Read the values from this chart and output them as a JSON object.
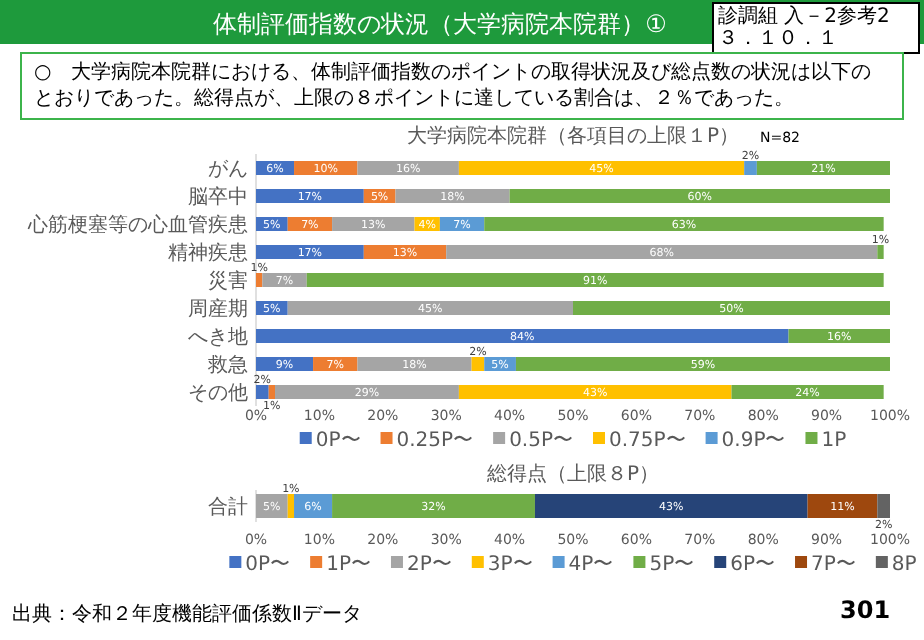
{
  "chart_data": [
    {
      "type": "bar",
      "orientation": "horizontal",
      "stacked": true,
      "title": "大学病院本院群（各項目の上限１P）",
      "annotations": [
        "体制評価指数の状況（大学病院本院群）①",
        "診調組 入－2参考2",
        "３．１０．１",
        "○　大学病院本院群における、体制評価指数のポイントの取得状況及び総点数の状況は以下のとおりであった。総得点が、上限の８ポイントに達している割合は、２％であった。",
        "N=82"
      ],
      "categories": [
        "がん",
        "脳卒中",
        "心筋梗塞等の心血管疾患",
        "精神疾患",
        "災害",
        "周産期",
        "へき地",
        "救急",
        "その他"
      ],
      "series": [
        {
          "name": "0P〜",
          "color": "#4472c4",
          "values": [
            6,
            17,
            5,
            17,
            null,
            5,
            84,
            9,
            2
          ],
          "value_labels": [
            "6%",
            "17%",
            "5%",
            "17%",
            null,
            "5%",
            "84%",
            "9%",
            "2%"
          ]
        },
        {
          "name": "0.25P〜",
          "color": "#ed7d31",
          "values": [
            10,
            5,
            7,
            13,
            1,
            null,
            null,
            7,
            1
          ],
          "value_labels": [
            "10%",
            "5%",
            "7%",
            "13%",
            "1%",
            null,
            null,
            "7%",
            "1%"
          ]
        },
        {
          "name": "0.5P〜",
          "color": "#a5a5a5",
          "values": [
            16,
            18,
            13,
            68,
            7,
            45,
            null,
            18,
            29
          ],
          "value_labels": [
            "16%",
            "18%",
            "13%",
            "68%",
            "7%",
            "45%",
            null,
            "18%",
            "29%"
          ]
        },
        {
          "name": "0.75P〜",
          "color": "#ffc000",
          "values": [
            45,
            null,
            4,
            null,
            null,
            null,
            null,
            2,
            43
          ],
          "value_labels": [
            "45%",
            null,
            "4%",
            null,
            null,
            null,
            null,
            "2%",
            "43%"
          ]
        },
        {
          "name": "0.9P〜",
          "color": "#5b9bd5",
          "values": [
            2,
            null,
            7,
            null,
            null,
            null,
            null,
            5,
            null
          ],
          "value_labels": [
            "2%",
            null,
            "7%",
            null,
            null,
            null,
            null,
            "5%",
            null
          ]
        },
        {
          "name": "1P",
          "color": "#70ad47",
          "values": [
            21,
            60,
            63,
            1,
            91,
            50,
            16,
            59,
            24
          ],
          "value_labels": [
            "21%",
            "60%",
            "63%",
            "1%",
            "91%",
            "50%",
            "16%",
            "59%",
            "24%"
          ]
        }
      ],
      "xlim": [
        0,
        100
      ],
      "xticks": [
        {
          "value": 0,
          "label": "0%"
        },
        {
          "value": 10,
          "label": "10%"
        },
        {
          "value": 20,
          "label": "20%"
        },
        {
          "value": 30,
          "label": "30%"
        },
        {
          "value": 40,
          "label": "40%"
        },
        {
          "value": 50,
          "label": "50%"
        },
        {
          "value": 60,
          "label": "60%"
        },
        {
          "value": 70,
          "label": "70%"
        },
        {
          "value": 80,
          "label": "80%"
        },
        {
          "value": 90,
          "label": "90%"
        },
        {
          "value": 100,
          "label": "100%"
        }
      ],
      "legend": "bottom"
    },
    {
      "type": "bar",
      "orientation": "horizontal",
      "stacked": true,
      "title": "総得点（上限８P）",
      "annotations": [
        "出典：令和２年度機能評価係数Ⅱデータ",
        "301"
      ],
      "categories": [
        "合計"
      ],
      "series": [
        {
          "name": "0P〜",
          "color": "#4472c4",
          "values": [
            null
          ],
          "value_labels": [
            null
          ]
        },
        {
          "name": "1P〜",
          "color": "#ed7d31",
          "values": [
            null
          ],
          "value_labels": [
            null
          ]
        },
        {
          "name": "2P〜",
          "color": "#a5a5a5",
          "values": [
            5
          ],
          "value_labels": [
            "5%"
          ]
        },
        {
          "name": "3P〜",
          "color": "#ffc000",
          "values": [
            1
          ],
          "value_labels": [
            "1%"
          ]
        },
        {
          "name": "4P〜",
          "color": "#5b9bd5",
          "values": [
            6
          ],
          "value_labels": [
            "6%"
          ]
        },
        {
          "name": "5P〜",
          "color": "#70ad47",
          "values": [
            32
          ],
          "value_labels": [
            "32%"
          ]
        },
        {
          "name": "6P〜",
          "color": "#264478",
          "values": [
            43
          ],
          "value_labels": [
            "43%"
          ]
        },
        {
          "name": "7P〜",
          "color": "#9e480e",
          "values": [
            11
          ],
          "value_labels": [
            "11%"
          ]
        },
        {
          "name": "8P",
          "color": "#636363",
          "values": [
            2
          ],
          "value_labels": [
            "2%"
          ]
        }
      ],
      "xlim": [
        0,
        100
      ],
      "xticks": [
        {
          "value": 0,
          "label": "0%"
        },
        {
          "value": 10,
          "label": "10%"
        },
        {
          "value": 20,
          "label": "20%"
        },
        {
          "value": 30,
          "label": "30%"
        },
        {
          "value": 40,
          "label": "40%"
        },
        {
          "value": 50,
          "label": "50%"
        },
        {
          "value": 60,
          "label": "60%"
        },
        {
          "value": 70,
          "label": "70%"
        },
        {
          "value": 80,
          "label": "80%"
        },
        {
          "value": 90,
          "label": "90%"
        },
        {
          "value": 100,
          "label": "100%"
        }
      ],
      "legend": "bottom"
    }
  ]
}
